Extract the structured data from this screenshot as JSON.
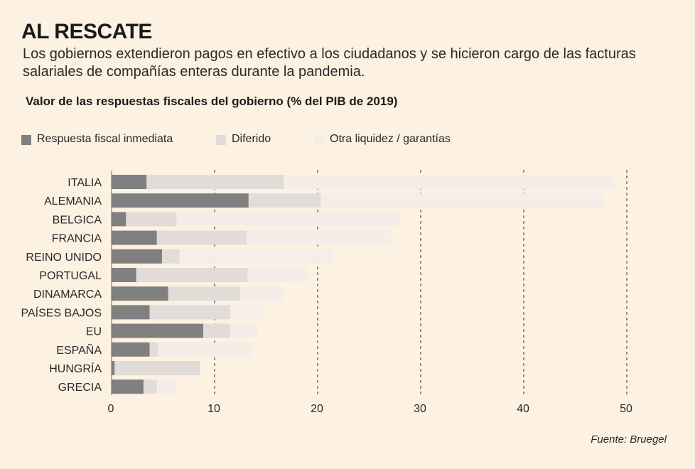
{
  "header": {
    "title": "AL RESCATE",
    "subtitle": "Los gobiernos extendieron pagos en efectivo a los ciudadanos y se hicieron cargo de las facturas salariales de compañías enteras durante la pandemia."
  },
  "source": "Fuente: Bruegel",
  "chart_data": {
    "type": "bar",
    "orientation": "horizontal",
    "stacked": true,
    "title": "Valor de las respuestas fiscales del gobierno (% del PIB de 2019)",
    "xlabel": "",
    "ylabel": "",
    "xlim": [
      0,
      50
    ],
    "xticks": [
      0,
      10,
      20,
      30,
      40,
      50
    ],
    "legend_position": "top-left",
    "grid": "vertical dotted lines at 10, 20, 30, 40, 50",
    "categories": [
      "ITALIA",
      "ALEMANIA",
      "BELGICA",
      "FRANCIA",
      "REINO UNIDO",
      "PORTUGAL",
      "DINAMARCA",
      "PAÍSES BAJOS",
      "EU",
      "ESPAÑA",
      "HUNGRÍA",
      "GRECIA"
    ],
    "series": [
      {
        "name": "Respuesta fiscal inmediata",
        "color": "#808080",
        "values": [
          3.4,
          13.3,
          1.4,
          4.4,
          4.9,
          2.4,
          5.5,
          3.7,
          8.9,
          3.7,
          0.3,
          3.1
        ]
      },
      {
        "name": "Diferido",
        "color": "#e2dcd8",
        "values": [
          13.3,
          7.0,
          4.9,
          8.7,
          1.7,
          10.8,
          7.0,
          7.8,
          2.6,
          0.8,
          8.3,
          1.3
        ]
      },
      {
        "name": "Otra liquidez / garantías",
        "color": "#f5ede8",
        "values": [
          32.1,
          27.4,
          21.8,
          14.0,
          14.9,
          5.8,
          4.1,
          3.3,
          2.7,
          9.0,
          0.0,
          1.9
        ]
      }
    ]
  }
}
